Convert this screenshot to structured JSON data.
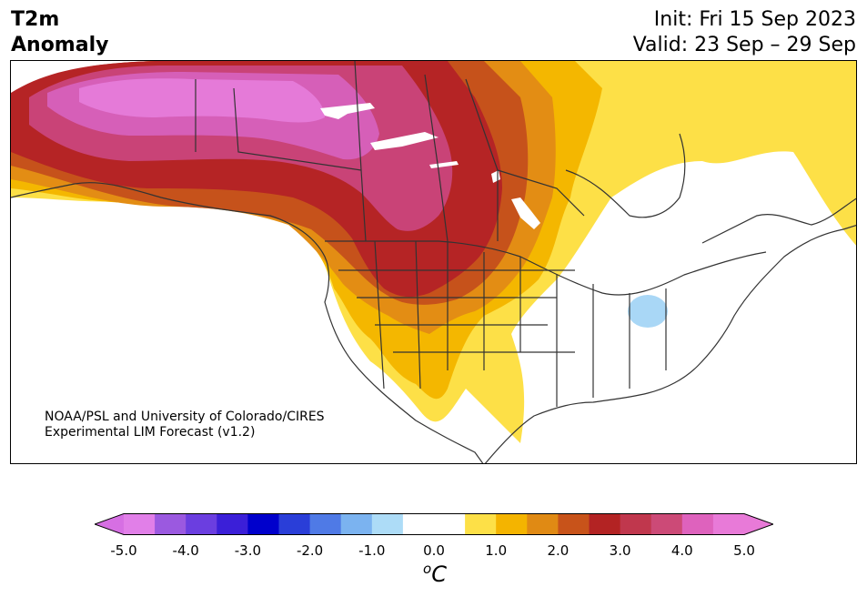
{
  "title_left": [
    "T2m",
    "Anomaly"
  ],
  "title_right": [
    "Init: Fri 15 Sep 2023",
    "Valid: 23 Sep – 29 Sep"
  ],
  "credit": [
    "NOAA/PSL and University of Colorado/CIRES",
    "Experimental LIM Forecast (v1.2)"
  ],
  "colorbar": {
    "colors": [
      "#e17fe8",
      "#9b59e0",
      "#6b3ee0",
      "#3b1fd8",
      "#0000cc",
      "#2a3ed8",
      "#4f7ae6",
      "#7bb3f0",
      "#addcf7",
      "#ffffff",
      "#ffffff",
      "#fde047",
      "#f4b400",
      "#e08a14",
      "#c8531a",
      "#b32323",
      "#c0374d",
      "#cc4a77",
      "#de62bd",
      "#e87ad8"
    ],
    "min_color": "#d66fe3",
    "max_color": "#e87ad8",
    "ticks": [
      "-5.0",
      "-4.0",
      "-3.0",
      "-2.0",
      "-1.0",
      "0.0",
      "1.0",
      "2.0",
      "3.0",
      "4.0",
      "5.0"
    ],
    "unit_base": "C",
    "unit_sup": "o"
  },
  "regions": {
    "max_color": "#e57ad8",
    "pink": "#d65fb8",
    "magenta": "#c94377",
    "crimson": "#b52425",
    "rust": "#c6521b",
    "orange": "#e38d14",
    "amber": "#f4b700",
    "yellow": "#fde047",
    "cool": "#a9d7f6",
    "land": "#ffffff",
    "border": "#333333"
  }
}
